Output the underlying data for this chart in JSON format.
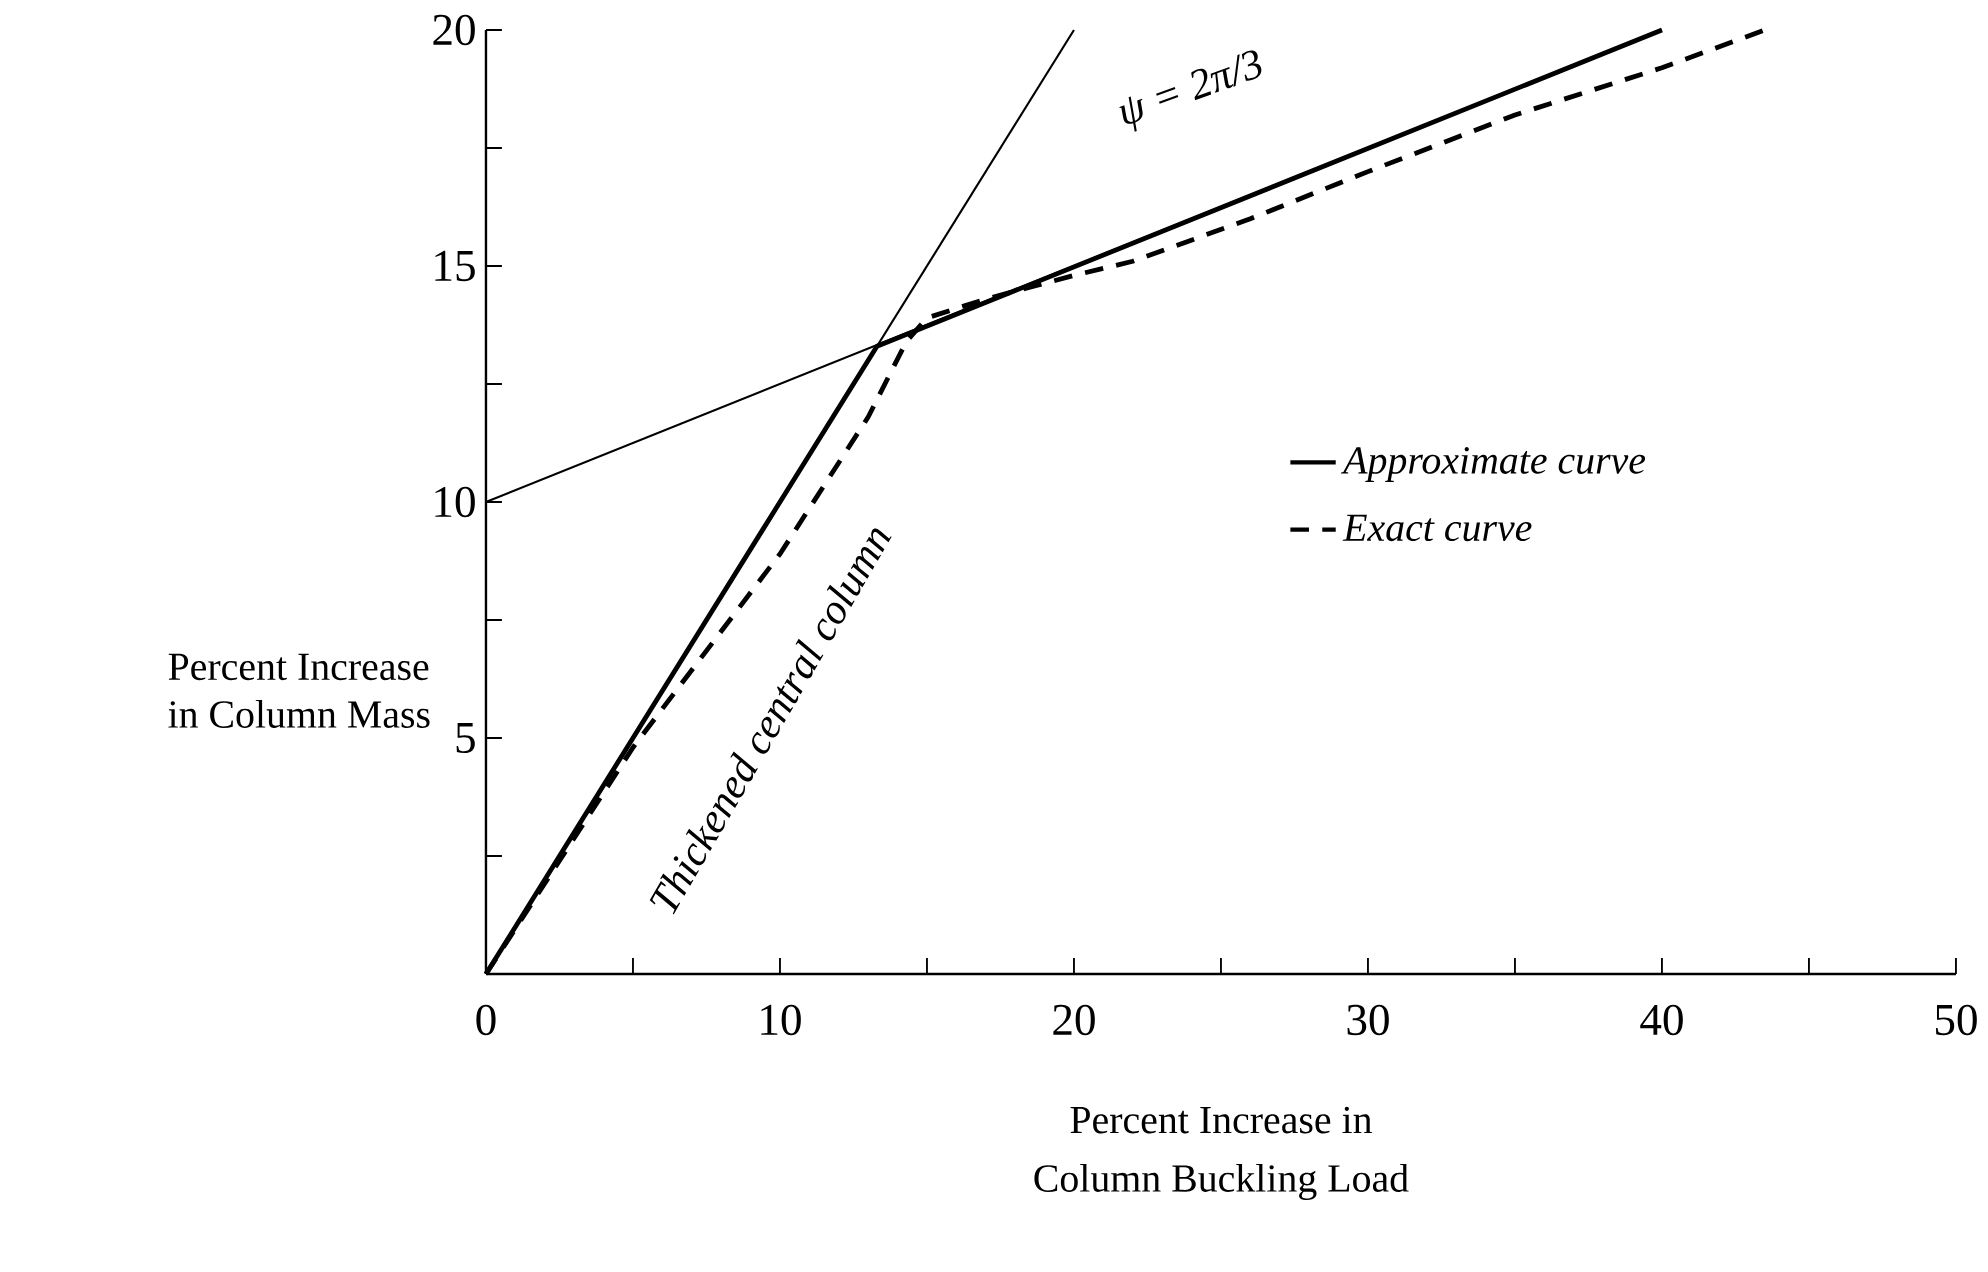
{
  "chart_data": {
    "type": "line",
    "xlabel": "Percent Increase in\nColumn Buckling Load",
    "ylabel": "Percent Increase\nin Column Mass",
    "xlim": [
      0,
      50
    ],
    "ylim": [
      0,
      20
    ],
    "xticks": [
      0,
      {
        "value": 5,
        "label": null
      },
      10,
      {
        "value": 15,
        "label": null
      },
      20,
      {
        "value": 25,
        "label": null
      },
      30,
      {
        "value": 35,
        "label": null
      },
      40,
      {
        "value": 45,
        "label": null
      },
      50
    ],
    "yticks": [
      {
        "value": 0,
        "label": null
      },
      {
        "value": 2.5,
        "label": null
      },
      5,
      {
        "value": 7.5,
        "label": null
      },
      10,
      {
        "value": 12.5,
        "label": null
      },
      15,
      {
        "value": 17.5,
        "label": null
      },
      20
    ],
    "series": [
      {
        "color": "#000000",
        "line_style": "solid",
        "x": [
          0,
          20
        ],
        "values": [
          0,
          20
        ]
      },
      {
        "color": "#000000",
        "line_style": "solid",
        "x": [
          0,
          40
        ],
        "values": [
          10,
          20
        ]
      },
      {
        "name": "Approximate curve",
        "color": "#000000",
        "line_style": "solid",
        "x": [
          0,
          13.3,
          40
        ],
        "values": [
          0,
          13.3,
          20
        ]
      },
      {
        "name": "Exact curve",
        "color": "#000000",
        "line_style": "dashed",
        "x": [
          0,
          5,
          10,
          13,
          14.3,
          15,
          17,
          20,
          22,
          26,
          30,
          35,
          40,
          43.5
        ],
        "values": [
          0,
          4.8,
          8.9,
          11.8,
          13.4,
          13.9,
          14.3,
          14.8,
          15.1,
          16,
          17,
          18.2,
          19.2,
          20
        ]
      }
    ],
    "annotations": [
      "Thickened central column",
      "ψ = 2π/3"
    ],
    "marker": "none",
    "grid": false,
    "legend": "right"
  }
}
